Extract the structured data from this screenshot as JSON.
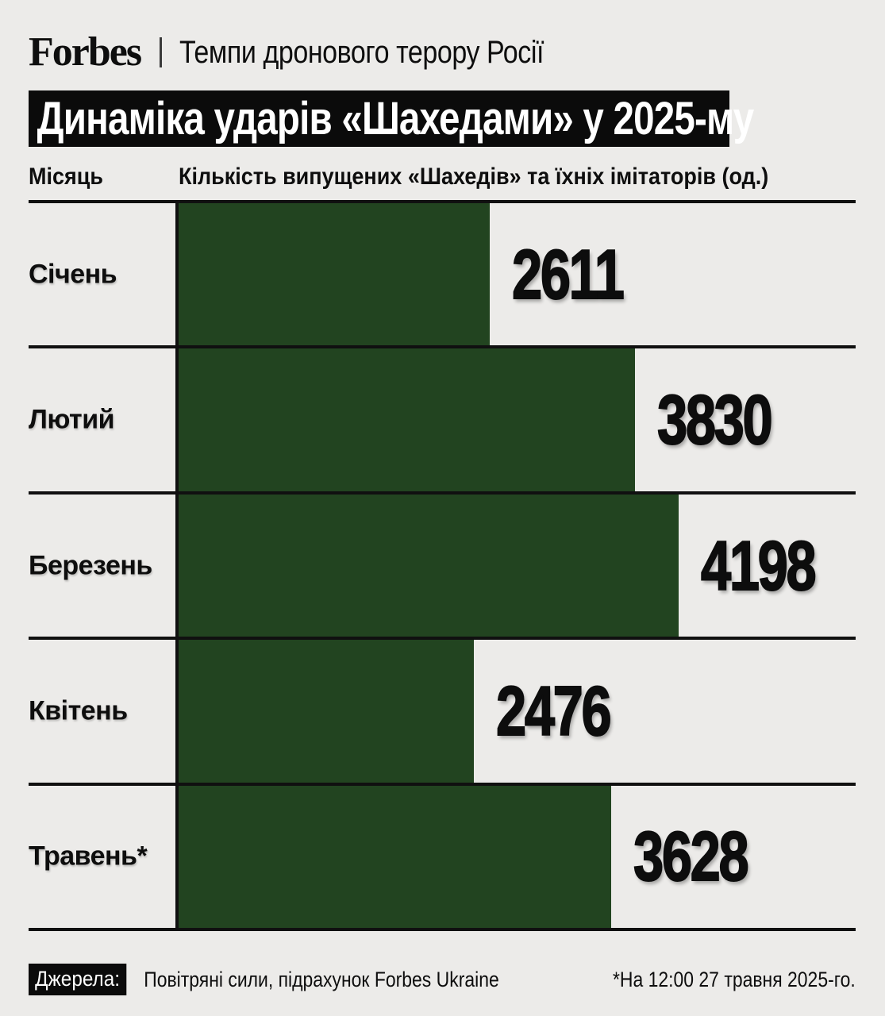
{
  "brand": {
    "logo": "Forbes",
    "divider": "|",
    "tagline": "Темпи дронового терору Росії"
  },
  "title": "Динаміка ударів «Шахедами» у 2025-му",
  "columns": {
    "month": "Місяць",
    "count": "Кількість випущених «Шахедів» та їхніх імітаторів (од.)"
  },
  "chart_data": {
    "type": "bar",
    "orientation": "horizontal",
    "title": "Динаміка ударів «Шахедами» у 2025-му",
    "xlabel": "Кількість випущених «Шахедів» та їхніх імітаторів (од.)",
    "ylabel": "Місяць",
    "categories": [
      "Січень",
      "Лютий",
      "Березень",
      "Квітень",
      "Травень*"
    ],
    "values": [
      2611,
      3830,
      4198,
      2476,
      3628
    ],
    "xlim": [
      0,
      5680
    ],
    "grid": "row-separators-only",
    "bar_color": "#224420",
    "background_color": "#ecebe9",
    "line_color": "#101010"
  },
  "footer": {
    "sources_label": "Джерела:",
    "sources": "Повітряні сили, підрахунок Forbes Ukraine",
    "note": "*На 12:00 27 травня 2025-го."
  }
}
